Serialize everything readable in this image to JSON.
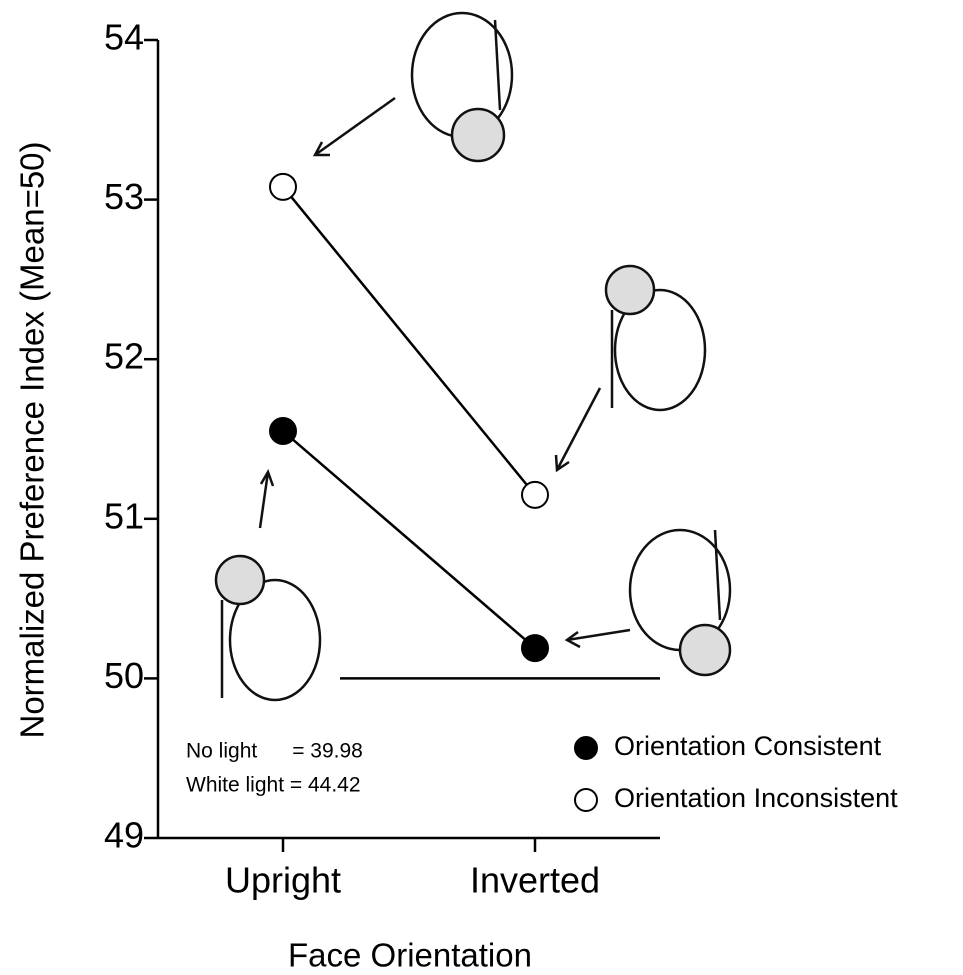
{
  "chart_data": {
    "type": "line",
    "y_label": "Normalized Preference Index (Mean=50)",
    "x_label": "Face Orientation",
    "categories": [
      "Upright",
      "Inverted"
    ],
    "series": [
      {
        "name": "Orientation  Consistent",
        "color": "#000000",
        "values": [
          51.55,
          50.19
        ]
      },
      {
        "name": "Orientation  Inconsistent",
        "color": "#ffffff",
        "values": [
          53.08,
          51.15
        ]
      }
    ],
    "ylim": [
      49,
      54
    ],
    "yticks": [
      49,
      50,
      51,
      52,
      53,
      54
    ],
    "reference_line": 50,
    "annotations": [
      "No light      = 39.98",
      "White light = 44.42"
    ],
    "legend": "lower right",
    "grid": false
  }
}
